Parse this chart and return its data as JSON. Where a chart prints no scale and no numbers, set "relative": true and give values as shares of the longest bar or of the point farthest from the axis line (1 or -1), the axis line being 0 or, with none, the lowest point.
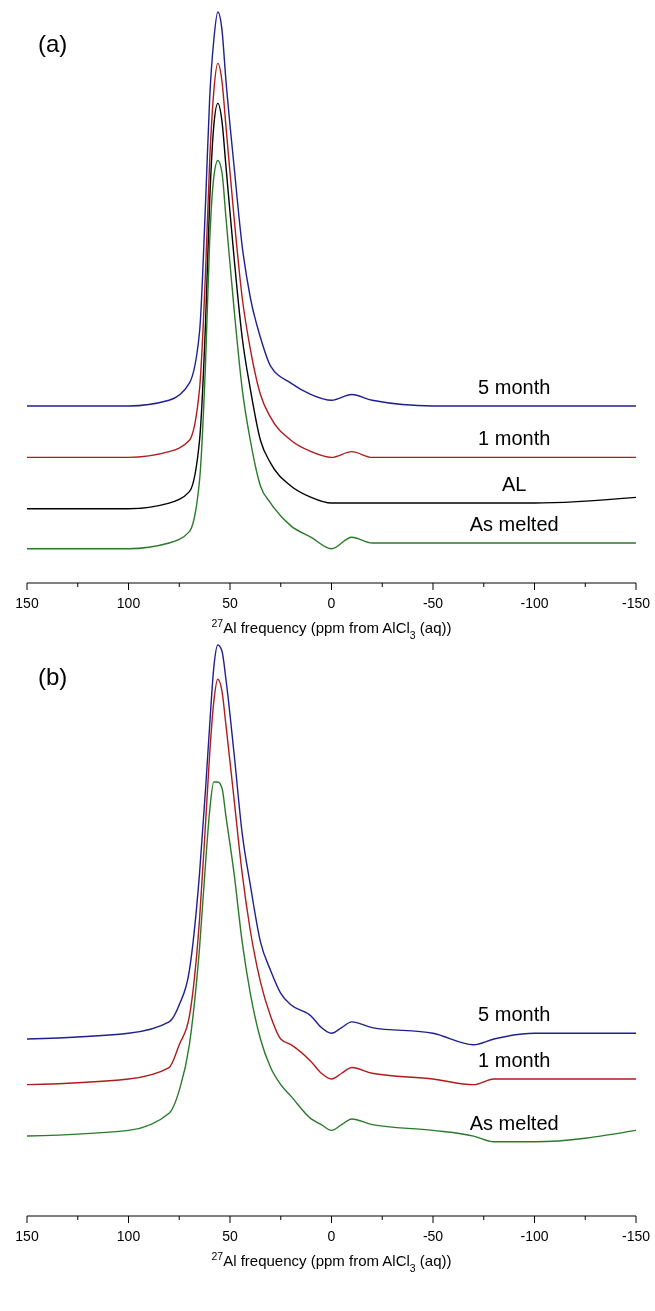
{
  "chart_data": [
    {
      "type": "line",
      "relative": true,
      "annotations": [
        "(a)"
      ],
      "xlabel": "$^{27}$Al frequency (ppm from AlCl$_{3}$  (aq))",
      "xlim": [
        150,
        -150
      ],
      "xticks": [
        150,
        {
          "value": 125,
          "label": null
        },
        100,
        {
          "value": 75,
          "label": null
        },
        50,
        {
          "value": 25,
          "label": null
        },
        0,
        {
          "value": -25,
          "label": null
        },
        -50,
        {
          "value": -75,
          "label": null
        },
        -100,
        {
          "value": -125,
          "label": null
        },
        -150
      ],
      "tick_labels": "x",
      "x": [
        150,
        100,
        80,
        70,
        65,
        62,
        60,
        58,
        56,
        54,
        52,
        48,
        44,
        40,
        35,
        30,
        20,
        10,
        0,
        -10,
        -20,
        -50,
        -100,
        -150
      ],
      "series": [
        {
          "name": "5 month",
          "color": "#1f1f8f",
          "values": [
            0.31,
            0.31,
            0.32,
            0.35,
            0.44,
            0.67,
            0.85,
            0.95,
            1,
            0.97,
            0.88,
            0.73,
            0.59,
            0.5,
            0.43,
            0.38,
            0.35,
            0.33,
            0.32,
            0.33,
            0.32,
            0.31,
            0.31,
            0.31
          ]
        },
        {
          "name": "1 month",
          "color": "#b01c1c",
          "values": [
            0.22,
            0.22,
            0.23,
            0.25,
            0.34,
            0.55,
            0.74,
            0.86,
            0.91,
            0.88,
            0.8,
            0.64,
            0.5,
            0.41,
            0.33,
            0.29,
            0.25,
            0.23,
            0.22,
            0.23,
            0.22,
            0.22,
            0.22,
            0.22
          ]
        },
        {
          "name": "AL",
          "color": "#000000",
          "values": [
            0.13,
            0.13,
            0.14,
            0.16,
            0.25,
            0.46,
            0.67,
            0.8,
            0.84,
            0.81,
            0.73,
            0.57,
            0.43,
            0.34,
            0.25,
            0.21,
            0.17,
            0.15,
            0.14,
            0.14,
            0.14,
            0.14,
            0.14,
            0.15
          ]
        },
        {
          "name": "As melted",
          "color": "#2a7a2a",
          "values": [
            0.06,
            0.06,
            0.07,
            0.09,
            0.18,
            0.39,
            0.6,
            0.71,
            0.74,
            0.72,
            0.64,
            0.48,
            0.34,
            0.25,
            0.17,
            0.14,
            0.1,
            0.08,
            0.06,
            0.08,
            0.07,
            0.07,
            0.07,
            0.07
          ]
        }
      ]
    },
    {
      "type": "line",
      "relative": true,
      "annotations": [
        "(b)"
      ],
      "xlabel": "$^{27}$Al frequency (ppm from AlCl$_{3}$  (aq))",
      "xlim": [
        150,
        -150
      ],
      "xticks": [
        150,
        {
          "value": 125,
          "label": null
        },
        100,
        {
          "value": 75,
          "label": null
        },
        50,
        {
          "value": 25,
          "label": null
        },
        0,
        {
          "value": -25,
          "label": null
        },
        -50,
        {
          "value": -75,
          "label": null
        },
        -100,
        {
          "value": -125,
          "label": null
        },
        -150
      ],
      "tick_labels": "x",
      "x": [
        150,
        100,
        80,
        75,
        70,
        65,
        62,
        60,
        58,
        56,
        54,
        52,
        48,
        44,
        40,
        35,
        30,
        25,
        20,
        10,
        5,
        0,
        -5,
        -10,
        -20,
        -50,
        -70,
        -80,
        -100,
        -150
      ],
      "series": [
        {
          "name": "5 month",
          "color": "#1f1f8f",
          "values": [
            0.31,
            0.32,
            0.34,
            0.37,
            0.43,
            0.6,
            0.75,
            0.86,
            0.96,
            1,
            0.99,
            0.94,
            0.81,
            0.67,
            0.58,
            0.48,
            0.43,
            0.39,
            0.37,
            0.35,
            0.33,
            0.32,
            0.33,
            0.34,
            0.33,
            0.32,
            0.3,
            0.31,
            0.32,
            0.32
          ]
        },
        {
          "name": "1 month",
          "color": "#b01c1c",
          "values": [
            0.23,
            0.24,
            0.26,
            0.3,
            0.35,
            0.52,
            0.69,
            0.81,
            0.9,
            0.94,
            0.92,
            0.86,
            0.73,
            0.6,
            0.5,
            0.41,
            0.35,
            0.31,
            0.3,
            0.27,
            0.25,
            0.24,
            0.25,
            0.26,
            0.25,
            0.24,
            0.23,
            0.24,
            0.24,
            0.24
          ]
        },
        {
          "name": "As melted",
          "color": "#2a7a2a",
          "values": [
            0.14,
            0.15,
            0.18,
            0.22,
            0.3,
            0.47,
            0.62,
            0.71,
            0.76,
            0.76,
            0.75,
            0.7,
            0.6,
            0.48,
            0.39,
            0.31,
            0.26,
            0.23,
            0.21,
            0.17,
            0.16,
            0.15,
            0.16,
            0.17,
            0.16,
            0.15,
            0.14,
            0.13,
            0.13,
            0.15
          ]
        }
      ]
    }
  ]
}
